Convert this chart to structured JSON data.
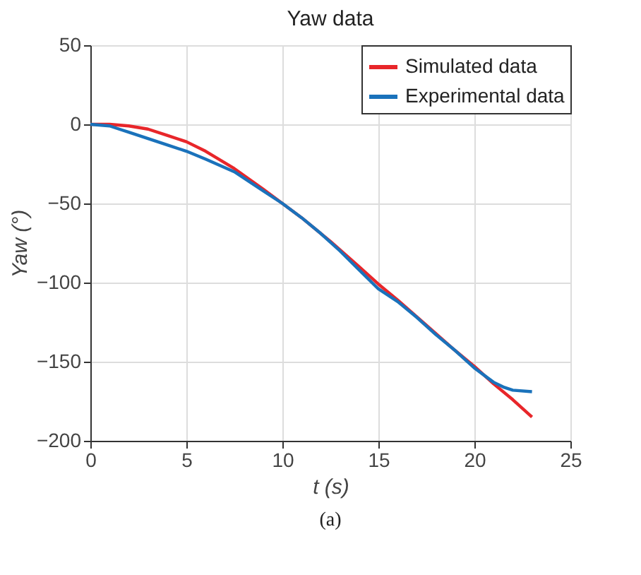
{
  "chart_data": {
    "type": "line",
    "title": "Yaw data",
    "xlabel": "t (s)",
    "ylabel": "Yaw (°)",
    "annotations": [
      "(a)"
    ],
    "xlim": [
      0,
      25
    ],
    "xticks": [
      0,
      5,
      10,
      15,
      20,
      25
    ],
    "ylim": [
      -200,
      50
    ],
    "yticks": [
      -200,
      -150,
      -100,
      -50,
      0,
      50
    ],
    "grid": true,
    "legend": "top right",
    "line_style": "solid",
    "marker": "none",
    "series": [
      {
        "name": "Simulated data",
        "color": "#e8262a",
        "x": [
          0,
          1,
          2,
          3,
          4,
          5,
          6,
          7.5,
          9,
          10,
          11,
          12.5,
          14,
          15,
          16,
          17.5,
          19,
          20,
          21,
          22,
          23
        ],
        "values": [
          0,
          0,
          -1,
          -3,
          -7,
          -11,
          -17,
          -28,
          -41,
          -50,
          -59,
          -74,
          -90,
          -101,
          -111,
          -127,
          -143,
          -153,
          -164,
          -174,
          -185
        ]
      },
      {
        "name": "Experimental data",
        "color": "#1a72bb",
        "x": [
          0,
          1,
          1.5,
          2,
          3,
          4,
          5,
          6,
          7.5,
          9,
          10,
          11,
          12,
          13,
          14,
          15,
          16,
          17,
          18,
          19,
          20,
          21,
          21.5,
          22,
          23
        ],
        "values": [
          0,
          -1,
          -3,
          -5,
          -9,
          -13,
          -17,
          -22,
          -30,
          -42,
          -50,
          -59,
          -69,
          -80,
          -92,
          -104,
          -112,
          -122,
          -133,
          -143,
          -154,
          -163,
          -166,
          -168,
          -169
        ]
      }
    ]
  }
}
